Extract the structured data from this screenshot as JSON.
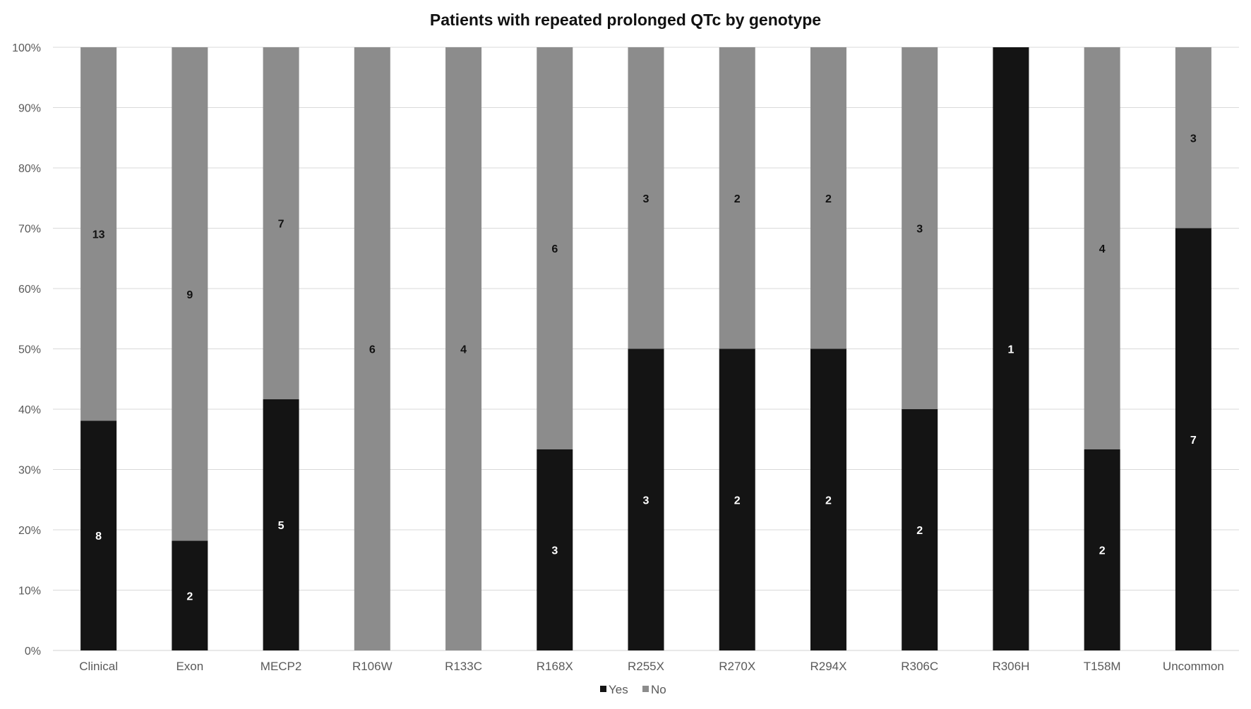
{
  "chart_data": {
    "type": "bar",
    "stacked": "percent",
    "title": "Patients with repeated prolonged QTc by genotype",
    "xlabel": "",
    "ylabel": "",
    "ylim": [
      0,
      100
    ],
    "y_ticks": [
      "0%",
      "10%",
      "20%",
      "30%",
      "40%",
      "50%",
      "60%",
      "70%",
      "80%",
      "90%",
      "100%"
    ],
    "grid": true,
    "legend_position": "bottom",
    "categories": [
      "Clinical",
      "Exon",
      "MECP2",
      "R106W",
      "R133C",
      "R168X",
      "R255X",
      "R270X",
      "R294X",
      "R306C",
      "R306H",
      "T158M",
      "Uncommon"
    ],
    "series": [
      {
        "name": "Yes",
        "color": "#141414",
        "label_color": "#ffffff",
        "values": [
          8,
          2,
          5,
          0,
          0,
          3,
          3,
          2,
          2,
          2,
          1,
          2,
          7
        ]
      },
      {
        "name": "No",
        "color": "#8c8c8c",
        "label_color": "#111111",
        "values": [
          13,
          9,
          7,
          6,
          4,
          6,
          3,
          2,
          2,
          3,
          0,
          4,
          3
        ]
      }
    ]
  }
}
